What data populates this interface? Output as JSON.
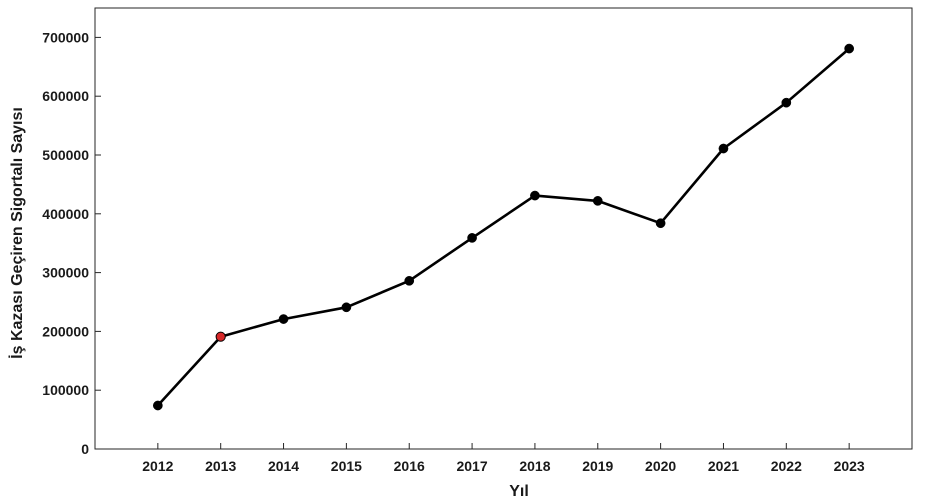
{
  "chart_data": {
    "type": "line",
    "xlabel": "Yıl",
    "ylabel": "İş Kazası Geçiren Sigortalı Sayısı",
    "x": [
      2012,
      2013,
      2014,
      2015,
      2016,
      2017,
      2018,
      2019,
      2020,
      2021,
      2022,
      2023
    ],
    "x_ticks": [
      "2012",
      "2013",
      "2014",
      "2015",
      "2016",
      "2017",
      "2018",
      "2019",
      "2020",
      "2021",
      "2022",
      "2023"
    ],
    "y_ticks": [
      "0",
      "100000",
      "200000",
      "300000",
      "400000",
      "500000",
      "600000",
      "700000"
    ],
    "xlim": [
      2011,
      2024
    ],
    "ylim": [
      0,
      750000
    ],
    "grid": false,
    "series": [
      {
        "values": [
          74000,
          191000,
          221000,
          241000,
          286000,
          359000,
          431000,
          422000,
          384000,
          511000,
          589000,
          681000
        ],
        "color": "#000000",
        "highlight_index": 1,
        "highlight_color": "#d62728"
      }
    ]
  }
}
